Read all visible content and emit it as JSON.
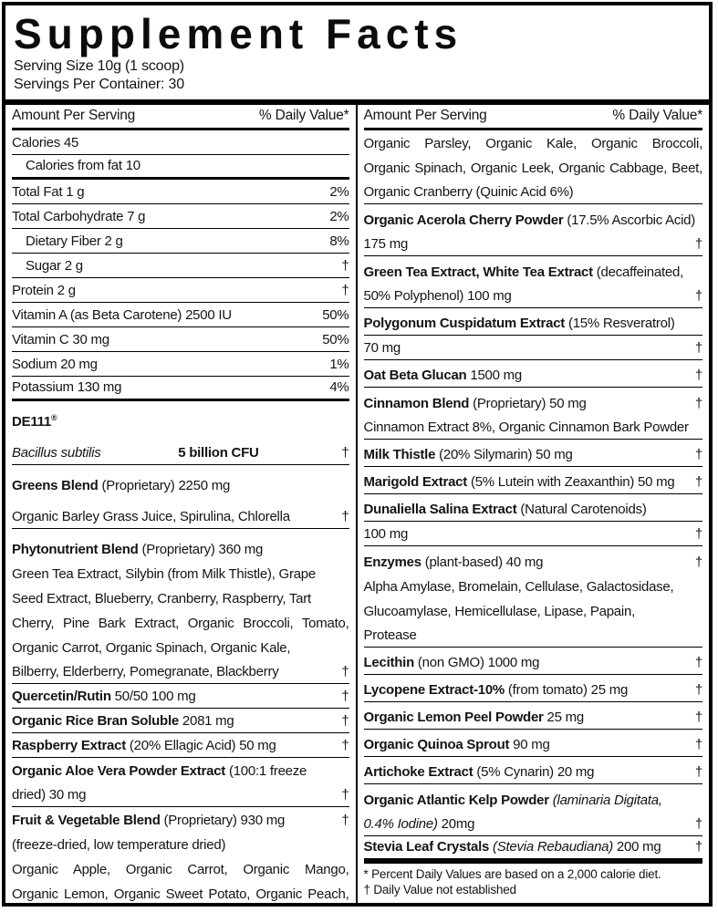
{
  "label": {
    "title": "Supplement Facts",
    "serving_size": "Serving Size 10g (1 scoop)",
    "servings_per_container": "Servings Per Container: 30"
  },
  "table": {
    "header": {
      "amount": "Amount Per Serving",
      "daily_value": "% Daily Value*"
    },
    "left_rows": [
      {
        "segs": [
          {
            "t": "Calories 45"
          }
        ],
        "u": 1
      },
      {
        "segs": [
          {
            "t": "Calories from fat 10"
          }
        ],
        "ind": 1,
        "u": 2
      },
      {
        "segs": [
          {
            "t": "Total Fat 1 g"
          }
        ],
        "val": "2%",
        "u": 1
      },
      {
        "segs": [
          {
            "t": "Total Carbohydrate 7 g"
          }
        ],
        "val": "2%",
        "u": 1
      },
      {
        "segs": [
          {
            "t": "Dietary Fiber 2 g"
          }
        ],
        "ind": 1,
        "val": "8%",
        "u": 1
      },
      {
        "segs": [
          {
            "t": "Sugar 2 g"
          }
        ],
        "ind": 1,
        "val": "†",
        "u": 1
      },
      {
        "segs": [
          {
            "t": "Protein 2 g"
          }
        ],
        "val": "†",
        "u": 1
      },
      {
        "segs": [
          {
            "t": "Vitamin A (as Beta Carotene) 2500 IU"
          }
        ],
        "val": "50%",
        "u": 1
      },
      {
        "segs": [
          {
            "t": "Vitamin C 30 mg"
          }
        ],
        "val": "50%",
        "u": 1
      },
      {
        "segs": [
          {
            "t": "Sodium 20 mg"
          }
        ],
        "val": "1%",
        "u": 1
      },
      {
        "segs": [
          {
            "t": "Potassium 130 mg"
          }
        ],
        "val": "4%",
        "u": 2
      },
      {
        "segs": [
          {
            "t": "DE111",
            "b": 1
          },
          {
            "t": "®",
            "sup": 1
          }
        ],
        "sp": 1
      },
      {
        "segs": [
          {
            "t": "Bacillus subtilis",
            "i": 1
          }
        ],
        "mid": "5 billion CFU",
        "val": "†",
        "u": 1,
        "sp": 1
      },
      {
        "segs": [
          {
            "t": "Greens Blend",
            "b": 1
          },
          {
            "t": " (Proprietary) 2250 mg"
          }
        ],
        "sp": 1
      },
      {
        "segs": [
          {
            "t": "Organic Barley Grass Juice, Spirulina, Chlorella"
          }
        ],
        "val": "†",
        "u": 1,
        "sp": 1
      },
      {
        "segs": [
          {
            "t": "Phytonutrient Blend",
            "b": 1
          },
          {
            "t": " (Proprietary) 360 mg"
          }
        ],
        "sp": 1
      },
      {
        "segs": [
          {
            "t": "Green Tea Extract, Silybin (from Milk Thistle), Grape"
          }
        ]
      },
      {
        "segs": [
          {
            "t": "Seed Extract, Blueberry, Cranberry, Raspberry, Tart"
          }
        ]
      },
      {
        "segs": [
          {
            "t": "Cherry, Pine Bark Extract, Organic Broccoli, Tomato,"
          }
        ],
        "just": 1
      },
      {
        "segs": [
          {
            "t": "Organic Carrot, Organic Spinach, Organic Kale,"
          }
        ]
      },
      {
        "segs": [
          {
            "t": "Bilberry, Elderberry, Pomegranate, Blackberry"
          }
        ],
        "val": "†",
        "u": 1
      },
      {
        "segs": [
          {
            "t": "Quercetin/Rutin",
            "b": 1
          },
          {
            "t": " 50/50 100 mg"
          }
        ],
        "val": "†",
        "u": 1
      },
      {
        "segs": [
          {
            "t": "Organic Rice Bran Soluble",
            "b": 1
          },
          {
            "t": " 2081 mg"
          }
        ],
        "val": "†",
        "u": 1
      },
      {
        "segs": [
          {
            "t": "Raspberry Extract",
            "b": 1
          },
          {
            "t": " (20% Ellagic Acid) 50 mg"
          }
        ],
        "val": "†",
        "u": 1
      },
      {
        "segs": [
          {
            "t": "Organic Aloe Vera Powder Extract",
            "b": 1
          },
          {
            "t": " (100:1 freeze"
          }
        ]
      },
      {
        "segs": [
          {
            "t": "dried) 30 mg"
          }
        ],
        "val": "†",
        "u": 1
      },
      {
        "segs": [
          {
            "t": "Fruit & Vegetable Blend",
            "b": 1
          },
          {
            "t": " (Proprietary) 930 mg"
          }
        ],
        "val": "†"
      },
      {
        "segs": [
          {
            "t": "(freeze-dried, low temperature dried)"
          }
        ]
      },
      {
        "segs": [
          {
            "t": "Organic Apple, Organic Carrot, Organic Mango,"
          }
        ],
        "just": 1
      },
      {
        "segs": [
          {
            "t": "Organic Lemon, Organic Sweet Potato, Organic Peach,"
          }
        ],
        "just": 1
      }
    ],
    "right_rows": [
      {
        "segs": [
          {
            "t": "Organic Parsley, Organic Kale, Organic Broccoli,"
          }
        ],
        "just": 1
      },
      {
        "segs": [
          {
            "t": "Organic Spinach, Organic Leek, Organic Cabbage, Beet,"
          }
        ],
        "just": 1
      },
      {
        "segs": [
          {
            "t": "Organic Cranberry (Quinic Acid 6%)"
          }
        ],
        "u": 1
      },
      {
        "segs": [
          {
            "t": "Organic Acerola Cherry Powder",
            "b": 1
          },
          {
            "t": " (17.5% Ascorbic Acid)"
          }
        ],
        "sp": 1
      },
      {
        "segs": [
          {
            "t": "175 mg"
          }
        ],
        "val": "†",
        "u": 1
      },
      {
        "segs": [
          {
            "t": "Green Tea Extract, White Tea Extract",
            "b": 1
          },
          {
            "t": " (decaffeinated,"
          }
        ],
        "sp": 1
      },
      {
        "segs": [
          {
            "t": "50% Polyphenol) 100 mg"
          }
        ],
        "val": "†",
        "u": 1
      },
      {
        "segs": [
          {
            "t": "Polygonum Cuspidatum Extract",
            "b": 1
          },
          {
            "t": " (15% Resveratrol)"
          }
        ],
        "u": 1,
        "sp": 1
      },
      {
        "segs": [
          {
            "t": "70 mg"
          }
        ],
        "val": "†",
        "u": 1
      },
      {
        "segs": [
          {
            "t": "Oat Beta Glucan",
            "b": 1
          },
          {
            "t": " 1500 mg"
          }
        ],
        "val": "†",
        "u": 1,
        "sp": 1
      },
      {
        "segs": [
          {
            "t": "Cinnamon Blend",
            "b": 1
          },
          {
            "t": " (Proprietary) 50 mg"
          }
        ],
        "val": "†",
        "sp": 1
      },
      {
        "segs": [
          {
            "t": "Cinnamon Extract 8%, Organic Cinnamon Bark Powder"
          }
        ],
        "u": 1
      },
      {
        "segs": [
          {
            "t": "Milk Thistle",
            "b": 1
          },
          {
            "t": " (20% Silymarin) 50 mg"
          }
        ],
        "val": "†",
        "u": 1,
        "sp": 1
      },
      {
        "segs": [
          {
            "t": "Marigold Extract",
            "b": 1
          },
          {
            "t": " (5% Lutein with Zeaxanthin) 50 mg"
          }
        ],
        "val": "†",
        "u": 1,
        "sp": 1
      },
      {
        "segs": [
          {
            "t": "Dunaliella Salina Extract",
            "b": 1
          },
          {
            "t": " (Natural Carotenoids)"
          }
        ],
        "u": 1,
        "sp": 1
      },
      {
        "segs": [
          {
            "t": "100 mg"
          }
        ],
        "val": "†",
        "u": 1
      },
      {
        "segs": [
          {
            "t": "Enzymes",
            "b": 1
          },
          {
            "t": " (plant-based) 40 mg"
          }
        ],
        "val": "†",
        "sp": 1
      },
      {
        "segs": [
          {
            "t": "Alpha Amylase, Bromelain, Cellulase, Galactosidase,"
          }
        ]
      },
      {
        "segs": [
          {
            "t": "Glucoamylase, Hemicellulase, Lipase, Papain,"
          }
        ]
      },
      {
        "segs": [
          {
            "t": "Protease"
          }
        ],
        "u": 1
      },
      {
        "segs": [
          {
            "t": "Lecithin",
            "b": 1
          },
          {
            "t": " (non GMO) 1000 mg"
          }
        ],
        "val": "†",
        "u": 1,
        "sp": 1
      },
      {
        "segs": [
          {
            "t": "Lycopene Extract-10%",
            "b": 1
          },
          {
            "t": " (from tomato) 25 mg"
          }
        ],
        "val": "†",
        "u": 1,
        "sp": 1
      },
      {
        "segs": [
          {
            "t": "Organic Lemon Peel Powder",
            "b": 1
          },
          {
            "t": " 25 mg"
          }
        ],
        "val": "†",
        "u": 1,
        "sp": 1
      },
      {
        "segs": [
          {
            "t": "Organic Quinoa Sprout",
            "b": 1
          },
          {
            "t": " 90 mg"
          }
        ],
        "val": "†",
        "u": 1,
        "sp": 1
      },
      {
        "segs": [
          {
            "t": "Artichoke Extract",
            "b": 1
          },
          {
            "t": " (5% Cynarin) 20 mg"
          }
        ],
        "val": "†",
        "u": 1,
        "sp": 1
      },
      {
        "segs": [
          {
            "t": "Organic Atlantic Kelp Powder",
            "b": 1
          },
          {
            "t": " (laminaria Digitata,",
            "i": 1
          }
        ],
        "sp": 1
      },
      {
        "segs": [
          {
            "t": "0.4% Iodine)",
            "i": 1
          },
          {
            "t": " 20mg"
          }
        ],
        "val": "†",
        "u": 1
      },
      {
        "segs": [
          {
            "t": "Stevia Leaf Crystals",
            "b": 1
          },
          {
            "t": " (Stevia Rebaudiana)",
            "i": 1
          },
          {
            "t": " 200 mg"
          }
        ],
        "val": "†",
        "u": 3,
        "sp": 1
      }
    ],
    "footnotes": [
      "* Percent Daily Values are based on a 2,000 calorie diet.",
      "† Daily Value not established"
    ]
  }
}
